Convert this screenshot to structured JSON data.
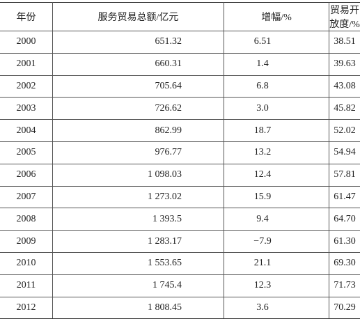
{
  "table": {
    "header": [
      "年份",
      "服务贸易总额/亿元",
      "增幅/%",
      "贸易开放度/%"
    ],
    "rows": [
      [
        "2000",
        "651.32",
        "6.51",
        "38.51"
      ],
      [
        "2001",
        "660.31",
        "1.4",
        "39.63"
      ],
      [
        "2002",
        "705.64",
        "6.8",
        "43.08"
      ],
      [
        "2003",
        "726.62",
        "3.0",
        "45.82"
      ],
      [
        "2004",
        "862.99",
        "18.7",
        "52.02"
      ],
      [
        "2005",
        "976.77",
        "13.2",
        "54.94"
      ],
      [
        "2006",
        "1 098.03",
        "12.4",
        "57.81"
      ],
      [
        "2007",
        "1 273.02",
        "15.9",
        "61.47"
      ],
      [
        "2008",
        "1 393.5",
        "9.4",
        "64.70"
      ],
      [
        "2009",
        "1 283.17",
        "−7.9",
        "61.30"
      ],
      [
        "2010",
        "1 553.65",
        "21.1",
        "69.30"
      ],
      [
        "2011",
        "1 745.4",
        "12.3",
        "71.73"
      ],
      [
        "2012",
        "1 808.45",
        "3.6",
        "70.29"
      ]
    ]
  }
}
